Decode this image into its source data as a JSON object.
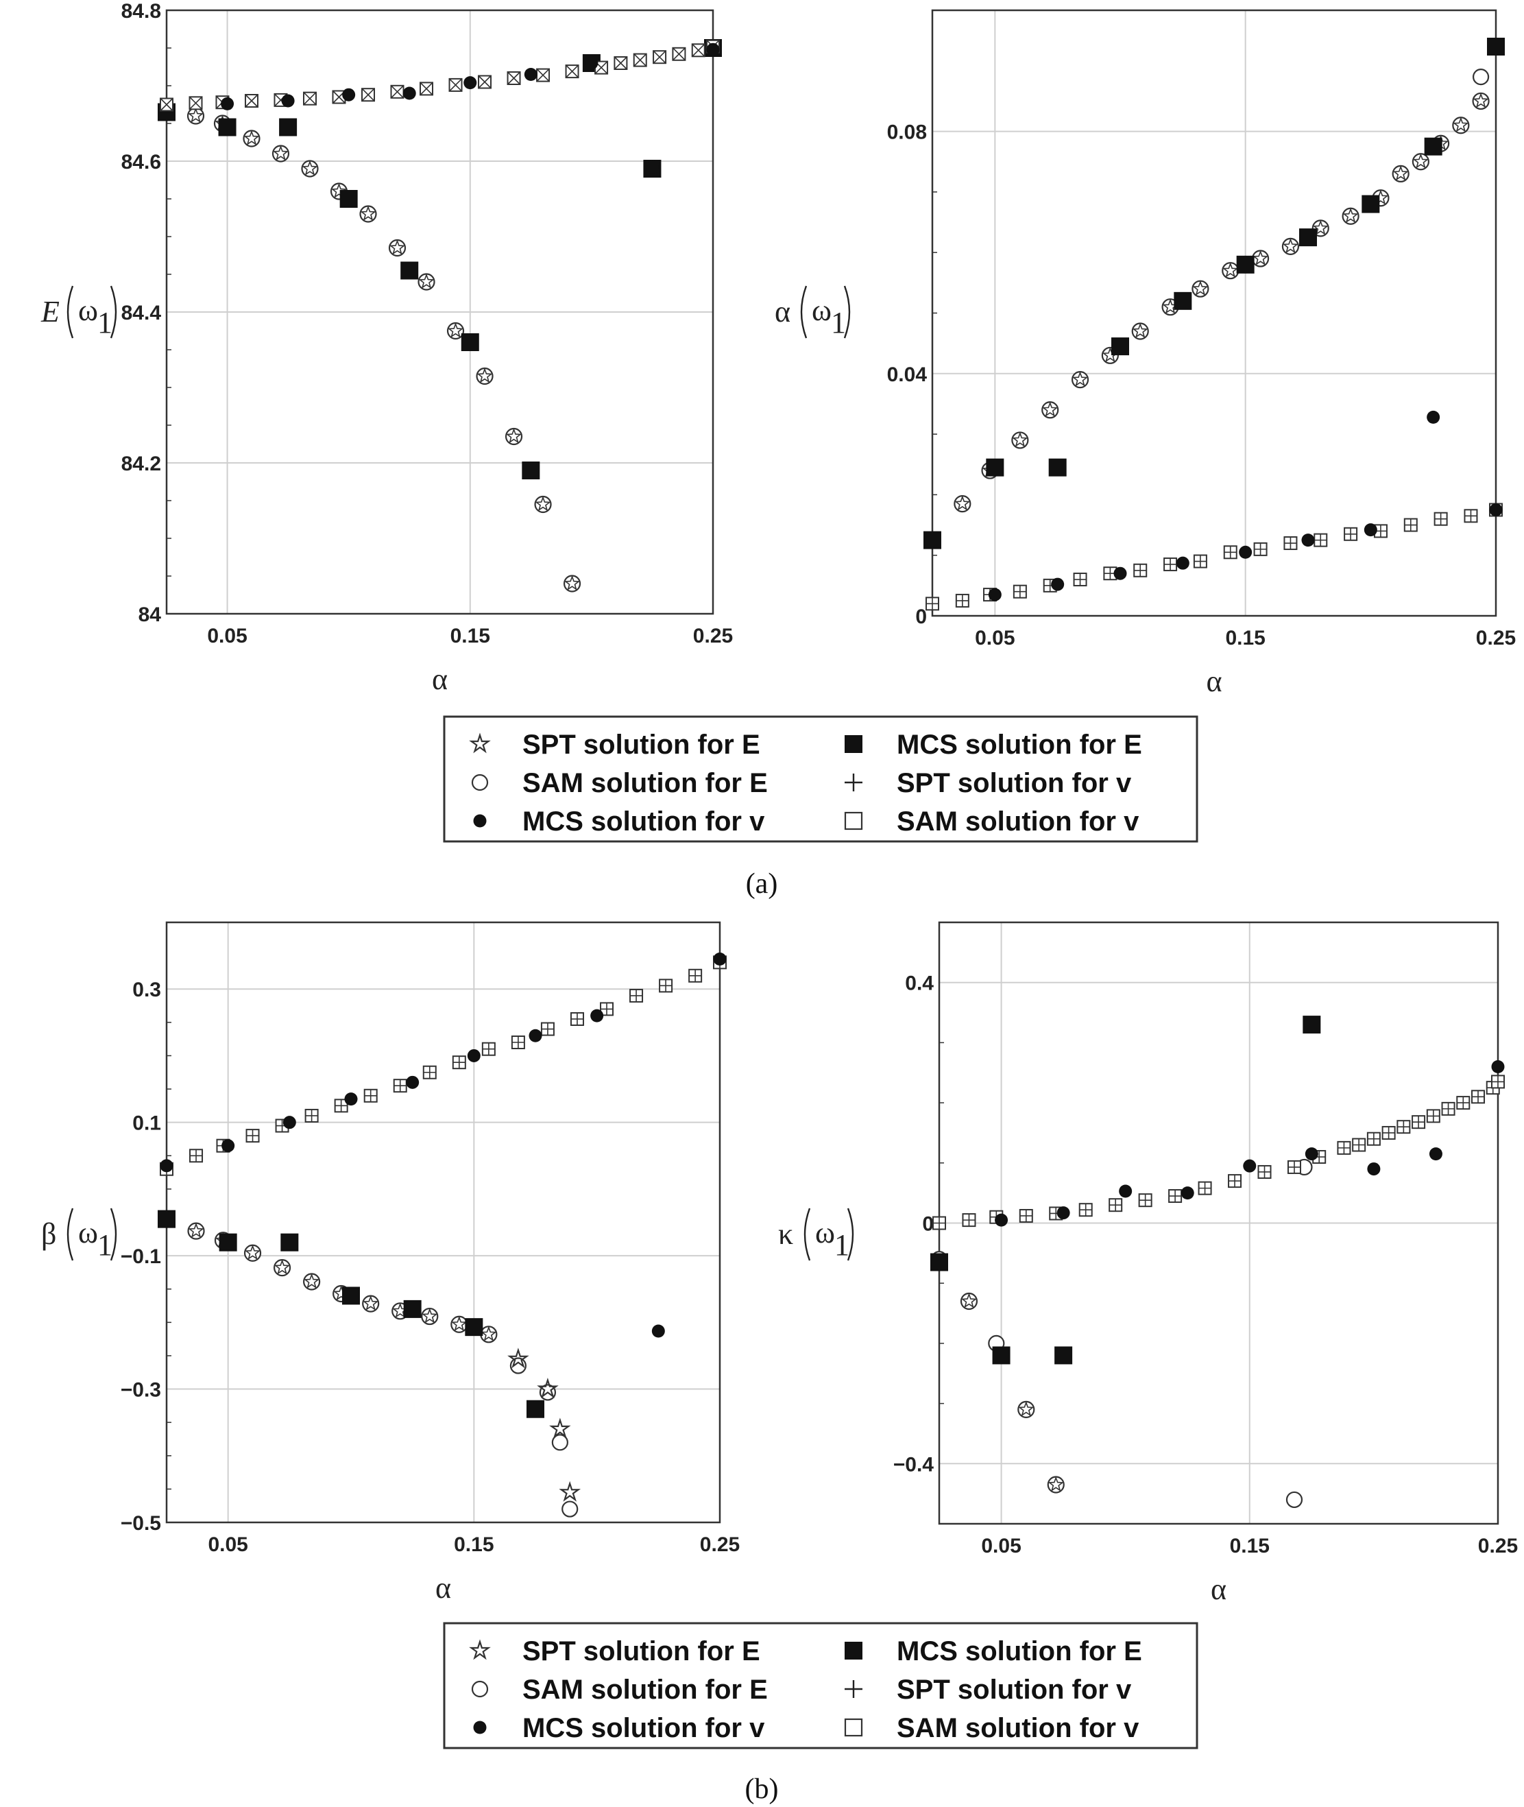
{
  "chart_data": [
    {
      "id": "a-left",
      "type": "scatter",
      "xlabel": "α",
      "ylabel_main": "E",
      "ylabel_arg": "ω",
      "ylabel_sub": "1",
      "xlim": [
        0.025,
        0.25
      ],
      "ylim": [
        84.0,
        84.8
      ],
      "xticks": [
        0.05,
        0.15,
        0.25
      ],
      "xtick_labels": [
        "0.05",
        "0.15",
        "0.25"
      ],
      "yticks": [
        84.0,
        84.2,
        84.4,
        84.6,
        84.8
      ],
      "ytick_labels": [
        "84",
        "84.2",
        "84.4",
        "84.6",
        "84.8"
      ],
      "series": [
        {
          "name": "SPT solution for E",
          "marker": "star-circle",
          "x": [
            0.025,
            0.037,
            0.048,
            0.06,
            0.072,
            0.084,
            0.096,
            0.108,
            0.12,
            0.132,
            0.144,
            0.156,
            0.168,
            0.18,
            0.192
          ],
          "y": [
            84.67,
            84.66,
            84.65,
            84.63,
            84.61,
            84.59,
            84.56,
            84.53,
            84.485,
            84.44,
            84.375,
            84.315,
            84.235,
            84.145,
            84.04
          ]
        },
        {
          "name": "MCS solution for E",
          "marker": "square",
          "x": [
            0.025,
            0.05,
            0.075,
            0.1,
            0.125,
            0.15,
            0.175,
            0.2,
            0.225,
            0.25
          ],
          "y": [
            84.665,
            84.645,
            84.645,
            84.55,
            84.455,
            84.36,
            84.19,
            84.73,
            84.59,
            84.75
          ]
        },
        {
          "name": "SAM solution for v",
          "marker": "square-x",
          "x": [
            0.025,
            0.037,
            0.048,
            0.06,
            0.072,
            0.084,
            0.096,
            0.108,
            0.12,
            0.132,
            0.144,
            0.156,
            0.168,
            0.18,
            0.192,
            0.204,
            0.212,
            0.22,
            0.228,
            0.236,
            0.244,
            0.25
          ],
          "y": [
            84.675,
            84.677,
            84.678,
            84.68,
            84.681,
            84.683,
            84.685,
            84.688,
            84.692,
            84.696,
            84.701,
            84.705,
            84.71,
            84.714,
            84.719,
            84.724,
            84.73,
            84.734,
            84.738,
            84.742,
            84.747,
            84.752
          ]
        },
        {
          "name": "MCS solution for v",
          "marker": "dot",
          "x": [
            0.05,
            0.075,
            0.1,
            0.125,
            0.15,
            0.175,
            0.2,
            0.225,
            0.25
          ],
          "y": [
            84.676,
            84.68,
            84.688,
            84.69,
            84.704,
            84.715,
            84.73,
            84.592,
            84.748
          ]
        }
      ]
    },
    {
      "id": "a-right",
      "type": "scatter",
      "xlabel": "α",
      "ylabel_main": "α",
      "ylabel_arg": "ω",
      "ylabel_sub": "1",
      "xlim": [
        0.025,
        0.25
      ],
      "ylim": [
        0.0,
        0.1
      ],
      "xticks": [
        0.05,
        0.15,
        0.25
      ],
      "xtick_labels": [
        "0.05",
        "0.15",
        "0.25"
      ],
      "yticks": [
        0.0,
        0.04,
        0.08
      ],
      "ytick_labels": [
        "0",
        "0.04",
        "0.08"
      ],
      "series": [
        {
          "name": "SPT solution for E",
          "marker": "star-circle",
          "x": [
            0.037,
            0.048,
            0.06,
            0.072,
            0.084,
            0.096,
            0.108,
            0.12,
            0.132,
            0.144,
            0.156,
            0.168,
            0.18,
            0.192,
            0.204,
            0.212,
            0.22,
            0.228,
            0.236,
            0.244
          ],
          "y": [
            0.0185,
            0.024,
            0.029,
            0.034,
            0.039,
            0.043,
            0.047,
            0.051,
            0.054,
            0.057,
            0.059,
            0.061,
            0.064,
            0.066,
            0.069,
            0.073,
            0.075,
            0.078,
            0.081,
            0.085
          ]
        },
        {
          "name": "SAM solution for E",
          "marker": "circle",
          "x": [
            0.244
          ],
          "y": [
            0.089
          ]
        },
        {
          "name": "MCS solution for E",
          "marker": "square",
          "x": [
            0.025,
            0.05,
            0.075,
            0.1,
            0.125,
            0.15,
            0.175,
            0.2,
            0.225,
            0.25
          ],
          "y": [
            0.0125,
            0.0245,
            0.0245,
            0.0445,
            0.052,
            0.058,
            0.0625,
            0.068,
            0.0775,
            0.094
          ]
        },
        {
          "name": "SAM solution for v",
          "marker": "square-plus",
          "x": [
            0.025,
            0.037,
            0.048,
            0.06,
            0.072,
            0.084,
            0.096,
            0.108,
            0.12,
            0.132,
            0.144,
            0.156,
            0.168,
            0.18,
            0.192,
            0.204,
            0.216,
            0.228,
            0.24,
            0.25
          ],
          "y": [
            0.002,
            0.0025,
            0.0035,
            0.004,
            0.005,
            0.006,
            0.007,
            0.0075,
            0.0085,
            0.009,
            0.0105,
            0.011,
            0.012,
            0.0125,
            0.0135,
            0.014,
            0.015,
            0.016,
            0.0165,
            0.0175
          ]
        },
        {
          "name": "MCS solution for v",
          "marker": "dot",
          "x": [
            0.05,
            0.075,
            0.1,
            0.125,
            0.15,
            0.175,
            0.2,
            0.225,
            0.25
          ],
          "y": [
            0.0035,
            0.0052,
            0.007,
            0.0087,
            0.0105,
            0.0125,
            0.0142,
            0.0328,
            0.0175
          ]
        }
      ]
    },
    {
      "id": "b-left",
      "type": "scatter",
      "xlabel": "α",
      "ylabel_main": "β",
      "ylabel_arg": "ω",
      "ylabel_sub": "1",
      "xlim": [
        0.025,
        0.25
      ],
      "ylim": [
        -0.5,
        0.4
      ],
      "xticks": [
        0.05,
        0.15,
        0.25
      ],
      "xtick_labels": [
        "0.05",
        "0.15",
        "0.25"
      ],
      "yticks": [
        -0.5,
        -0.3,
        -0.1,
        0.1,
        0.3
      ],
      "ytick_labels": [
        "−0.5",
        "−0.3",
        "−0.1",
        "0.1",
        "0.3"
      ],
      "series": [
        {
          "name": "SPT solution for E",
          "marker": "star-circle",
          "x": [
            0.037,
            0.048,
            0.06,
            0.072,
            0.084,
            0.096,
            0.108,
            0.12,
            0.132,
            0.144,
            0.156
          ],
          "y": [
            -0.063,
            -0.077,
            -0.096,
            -0.118,
            -0.139,
            -0.157,
            -0.172,
            -0.183,
            -0.191,
            -0.203,
            -0.218
          ]
        },
        {
          "name": "SAM solution for E",
          "marker": "circle",
          "x": [
            0.168,
            0.18,
            0.185,
            0.189
          ],
          "y": [
            -0.265,
            -0.305,
            -0.38,
            -0.48
          ]
        },
        {
          "name": "SPT solution for E",
          "marker": "star",
          "x": [
            0.168,
            0.18,
            0.185,
            0.189
          ],
          "y": [
            -0.255,
            -0.3,
            -0.36,
            -0.455
          ]
        },
        {
          "name": "MCS solution for E",
          "marker": "square",
          "x": [
            0.025,
            0.05,
            0.075,
            0.1,
            0.125,
            0.15,
            0.175
          ],
          "y": [
            -0.045,
            -0.08,
            -0.08,
            -0.16,
            -0.18,
            -0.207,
            -0.33
          ]
        },
        {
          "name": "SAM solution for v",
          "marker": "square-plus",
          "x": [
            0.025,
            0.037,
            0.048,
            0.06,
            0.072,
            0.084,
            0.096,
            0.108,
            0.12,
            0.132,
            0.144,
            0.156,
            0.168,
            0.18,
            0.192,
            0.204,
            0.216,
            0.228,
            0.24,
            0.25
          ],
          "y": [
            0.03,
            0.05,
            0.065,
            0.08,
            0.095,
            0.11,
            0.125,
            0.14,
            0.155,
            0.175,
            0.19,
            0.21,
            0.22,
            0.24,
            0.255,
            0.27,
            0.29,
            0.305,
            0.32,
            0.34
          ]
        },
        {
          "name": "MCS solution for v",
          "marker": "dot",
          "x": [
            0.025,
            0.05,
            0.075,
            0.1,
            0.125,
            0.15,
            0.175,
            0.2,
            0.225,
            0.25
          ],
          "y": [
            0.035,
            0.065,
            0.1,
            0.135,
            0.16,
            0.2,
            0.23,
            0.26,
            -0.213,
            0.345
          ]
        }
      ]
    },
    {
      "id": "b-right",
      "type": "scatter",
      "xlabel": "α",
      "ylabel_main": "κ",
      "ylabel_arg": "ω",
      "ylabel_sub": "1",
      "xlim": [
        0.025,
        0.25
      ],
      "ylim": [
        -0.5,
        0.5
      ],
      "xticks": [
        0.05,
        0.15,
        0.25
      ],
      "xtick_labels": [
        "0.05",
        "0.15",
        "0.25"
      ],
      "yticks": [
        -0.4,
        0.0,
        0.4
      ],
      "ytick_labels": [
        "−0.4",
        "0",
        "0.4"
      ],
      "series": [
        {
          "name": "SPT solution for E",
          "marker": "star-circle",
          "x": [
            0.037,
            0.06,
            0.072
          ],
          "y": [
            -0.13,
            -0.31,
            -0.435
          ]
        },
        {
          "name": "SAM solution for E",
          "marker": "circle",
          "x": [
            0.025,
            0.048,
            0.168,
            0.172
          ],
          "y": [
            -0.06,
            -0.2,
            -0.46,
            0.093
          ]
        },
        {
          "name": "MCS solution for E",
          "marker": "square",
          "x": [
            0.025,
            0.05,
            0.075,
            0.175
          ],
          "y": [
            -0.065,
            -0.22,
            -0.22,
            0.33
          ]
        },
        {
          "name": "SAM solution for v",
          "marker": "square-plus",
          "x": [
            0.025,
            0.037,
            0.048,
            0.06,
            0.072,
            0.084,
            0.096,
            0.108,
            0.12,
            0.132,
            0.144,
            0.156,
            0.168,
            0.178,
            0.188,
            0.194,
            0.2,
            0.206,
            0.212,
            0.218,
            0.224,
            0.23,
            0.236,
            0.242,
            0.248,
            0.25
          ],
          "y": [
            0.0,
            0.005,
            0.01,
            0.012,
            0.016,
            0.022,
            0.03,
            0.038,
            0.045,
            0.058,
            0.07,
            0.085,
            0.093,
            0.11,
            0.125,
            0.13,
            0.14,
            0.15,
            0.16,
            0.168,
            0.178,
            0.19,
            0.2,
            0.21,
            0.225,
            0.235
          ]
        },
        {
          "name": "MCS solution for v",
          "marker": "dot",
          "x": [
            0.05,
            0.075,
            0.1,
            0.125,
            0.15,
            0.175,
            0.2,
            0.225,
            0.25
          ],
          "y": [
            0.005,
            0.017,
            0.053,
            0.05,
            0.095,
            0.115,
            0.09,
            0.115,
            0.26
          ]
        }
      ]
    }
  ],
  "legend_a": [
    {
      "label": "SPT solution for E",
      "marker": "star"
    },
    {
      "label": "MCS solution for E",
      "marker": "square"
    },
    {
      "label": "SAM solution for E",
      "marker": "circle"
    },
    {
      "label": "SPT solution for v",
      "marker": "plus"
    },
    {
      "label": "MCS solution for v",
      "marker": "dot"
    },
    {
      "label": "SAM solution for v",
      "marker": "hollow-square"
    }
  ],
  "legend_b": [
    {
      "label": "SPT solution for E",
      "marker": "star"
    },
    {
      "label": "MCS solution for E",
      "marker": "square"
    },
    {
      "label": "SAM solution for E",
      "marker": "circle"
    },
    {
      "label": "SPT solution for v",
      "marker": "plus"
    },
    {
      "label": "MCS solution for v",
      "marker": "dot"
    },
    {
      "label": "SAM solution for v",
      "marker": "hollow-square"
    }
  ],
  "captions": {
    "a": "(a)",
    "b": "(b)"
  }
}
